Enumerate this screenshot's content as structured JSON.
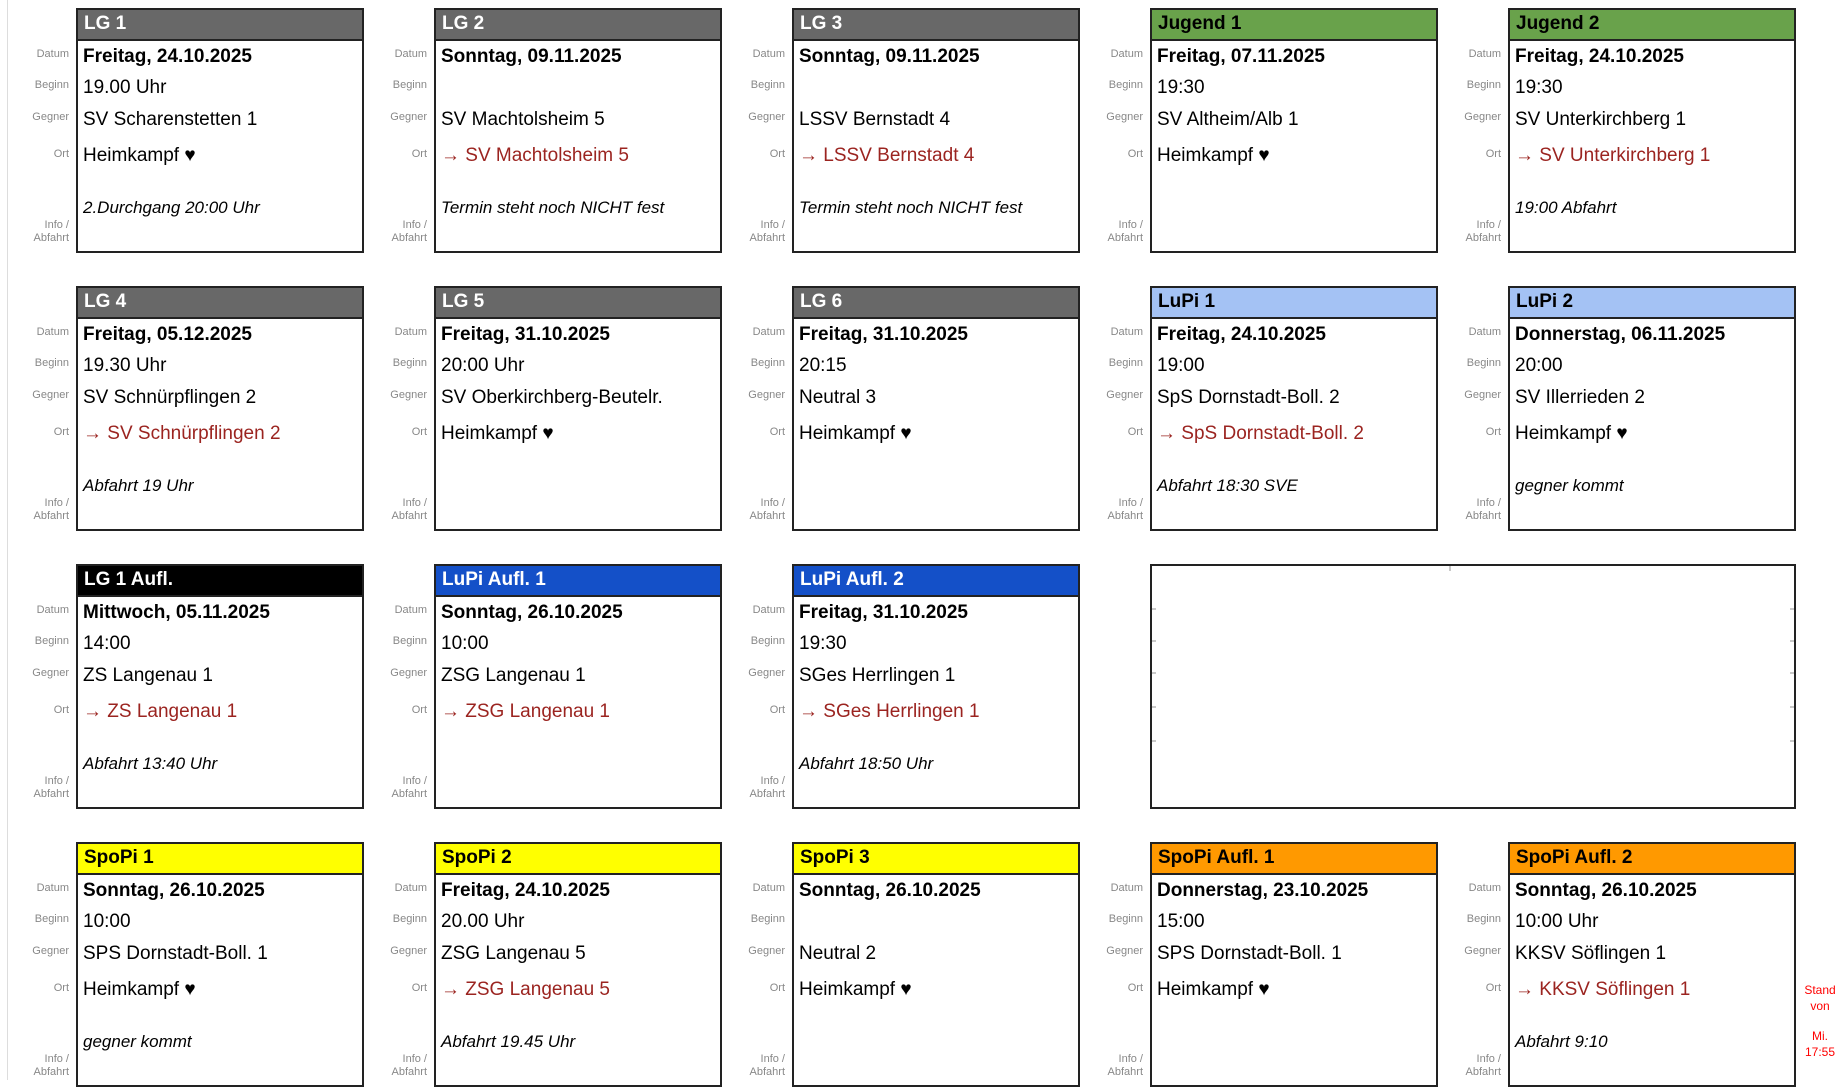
{
  "labels": {
    "datum": "Datum",
    "beginn": "Beginn",
    "gegner": "Gegner",
    "ort": "Ort",
    "info_line1": "Info /",
    "info_line2": "Abfahrt"
  },
  "colors": {
    "header_gray": "#686868",
    "header_green": "#69a24b",
    "header_lightblue": "#a4c2f4",
    "header_black": "#000000",
    "header_blue": "#1450c8",
    "header_yellow": "#ffff00",
    "header_orange": "#ff9900",
    "away_red": "#9b2420",
    "label_gray": "#888888",
    "stand_red": "#ff0000"
  },
  "stand_note": {
    "line1": "Stand von",
    "line2": "Mi.",
    "line3": "17:55"
  },
  "cards": [
    {
      "title": "LG 1",
      "header": "header_gray",
      "header_text": "#ffffff",
      "row": 1,
      "col": 1,
      "datum": "Freitag, 24.10.2025",
      "beginn": "19.00 Uhr",
      "gegner": "SV Scharenstetten 1",
      "ort": "Heimkampf ♥",
      "ort_type": "home",
      "info": "2.Durchgang 20:00 Uhr"
    },
    {
      "title": "LG 2",
      "header": "header_gray",
      "header_text": "#ffffff",
      "row": 1,
      "col": 2,
      "datum": "Sonntag, 09.11.2025",
      "beginn": "",
      "gegner": "SV Machtolsheim 5",
      "ort": "→ SV Machtolsheim 5",
      "ort_type": "away",
      "info": "Termin steht noch NICHT fest"
    },
    {
      "title": "LG 3",
      "header": "header_gray",
      "header_text": "#ffffff",
      "row": 1,
      "col": 3,
      "datum": "Sonntag, 09.11.2025",
      "beginn": "",
      "gegner": "LSSV Bernstadt 4",
      "ort": "→ LSSV Bernstadt 4",
      "ort_type": "away",
      "info": "Termin steht noch NICHT fest"
    },
    {
      "title": "Jugend 1",
      "header": "header_green",
      "header_text": "#000000",
      "row": 1,
      "col": 4,
      "datum": "Freitag, 07.11.2025",
      "beginn": "19:30",
      "gegner": "SV Altheim/Alb 1",
      "ort": "Heimkampf ♥",
      "ort_type": "home",
      "info": ""
    },
    {
      "title": "Jugend 2",
      "header": "header_green",
      "header_text": "#000000",
      "row": 1,
      "col": 5,
      "datum": "Freitag, 24.10.2025",
      "beginn": "19:30",
      "gegner": "SV Unterkirchberg 1",
      "ort": "→ SV Unterkirchberg 1",
      "ort_type": "away",
      "info": "19:00 Abfahrt"
    },
    {
      "title": "LG 4",
      "header": "header_gray",
      "header_text": "#ffffff",
      "row": 2,
      "col": 1,
      "datum": "Freitag, 05.12.2025",
      "beginn": "19.30 Uhr",
      "gegner": "SV Schnürpflingen 2",
      "ort": "→ SV Schnürpflingen 2",
      "ort_type": "away",
      "info": "Abfahrt 19 Uhr"
    },
    {
      "title": "LG 5",
      "header": "header_gray",
      "header_text": "#ffffff",
      "row": 2,
      "col": 2,
      "datum": "Freitag, 31.10.2025",
      "beginn": "20:00 Uhr",
      "gegner": "SV Oberkirchberg-Beutelr.",
      "ort": "Heimkampf ♥",
      "ort_type": "home",
      "info": ""
    },
    {
      "title": "LG 6",
      "header": "header_gray",
      "header_text": "#ffffff",
      "row": 2,
      "col": 3,
      "datum": "Freitag, 31.10.2025",
      "beginn": "20:15",
      "gegner": "Neutral 3",
      "ort": "Heimkampf ♥",
      "ort_type": "home",
      "info": ""
    },
    {
      "title": "LuPi 1",
      "header": "header_lightblue",
      "header_text": "#000000",
      "row": 2,
      "col": 4,
      "datum": "Freitag, 24.10.2025",
      "beginn": "19:00",
      "gegner": "SpS Dornstadt-Boll. 2",
      "ort": "→ SpS Dornstadt-Boll. 2",
      "ort_type": "away",
      "info": "Abfahrt 18:30 SVE"
    },
    {
      "title": "LuPi 2",
      "header": "header_lightblue",
      "header_text": "#000000",
      "row": 2,
      "col": 5,
      "datum": "Donnerstag, 06.11.2025",
      "beginn": "20:00",
      "gegner": "SV Illerrieden 2",
      "ort": "Heimkampf ♥",
      "ort_type": "home",
      "info": "gegner kommt"
    },
    {
      "title": "LG 1 Aufl.",
      "header": "header_black",
      "header_text": "#ffffff",
      "row": 3,
      "col": 1,
      "datum": "Mittwoch, 05.11.2025",
      "beginn": "14:00",
      "gegner": "ZS Langenau 1",
      "ort": "→ ZS Langenau 1",
      "ort_type": "away",
      "info": "Abfahrt 13:40 Uhr"
    },
    {
      "title": "LuPi Aufl. 1",
      "header": "header_blue",
      "header_text": "#ffffff",
      "row": 3,
      "col": 2,
      "datum": "Sonntag, 26.10.2025",
      "beginn": "10:00",
      "gegner": "ZSG Langenau 1",
      "ort": "→ ZSG Langenau 1",
      "ort_type": "away",
      "info": ""
    },
    {
      "title": "LuPi Aufl. 2",
      "header": "header_blue",
      "header_text": "#ffffff",
      "row": 3,
      "col": 3,
      "datum": "Freitag, 31.10.2025",
      "beginn": "19:30",
      "gegner": "SGes Herrlingen 1",
      "ort": "→ SGes Herrlingen 1",
      "ort_type": "away",
      "info": "Abfahrt 18:50 Uhr"
    },
    {
      "title": "SpoPi 1",
      "header": "header_yellow",
      "header_text": "#000000",
      "row": 4,
      "col": 1,
      "datum": "Sonntag, 26.10.2025",
      "beginn": "10:00",
      "gegner": "SPS Dornstadt-Boll. 1",
      "ort": "Heimkampf ♥",
      "ort_type": "home",
      "info": "gegner kommt"
    },
    {
      "title": "SpoPi 2",
      "header": "header_yellow",
      "header_text": "#000000",
      "row": 4,
      "col": 2,
      "datum": "Freitag, 24.10.2025",
      "beginn": "20.00 Uhr",
      "gegner": "ZSG Langenau 5",
      "ort": "→ ZSG Langenau 5",
      "ort_type": "away",
      "info": "Abfahrt 19.45 Uhr"
    },
    {
      "title": "SpoPi 3",
      "header": "header_yellow",
      "header_text": "#000000",
      "row": 4,
      "col": 3,
      "datum": "Sonntag, 26.10.2025",
      "beginn": "",
      "gegner": "Neutral 2",
      "ort": "Heimkampf ♥",
      "ort_type": "home",
      "info": ""
    },
    {
      "title": "SpoPi Aufl. 1",
      "header": "header_orange",
      "header_text": "#000000",
      "row": 4,
      "col": 4,
      "datum": "Donnerstag, 23.10.2025",
      "beginn": "15:00",
      "gegner": "SPS Dornstadt-Boll. 1",
      "ort": "Heimkampf ♥",
      "ort_type": "home",
      "info": ""
    },
    {
      "title": "SpoPi Aufl. 2",
      "header": "header_orange",
      "header_text": "#000000",
      "row": 4,
      "col": 5,
      "datum": "Sonntag, 26.10.2025",
      "beginn": "10:00 Uhr",
      "gegner": "KKSV Söflingen 1",
      "ort": "→ KKSV Söflingen 1",
      "ort_type": "away",
      "info": "Abfahrt 9:10"
    }
  ],
  "empty_slot": {
    "row": 3,
    "col_start": 4,
    "col_span": 2
  }
}
